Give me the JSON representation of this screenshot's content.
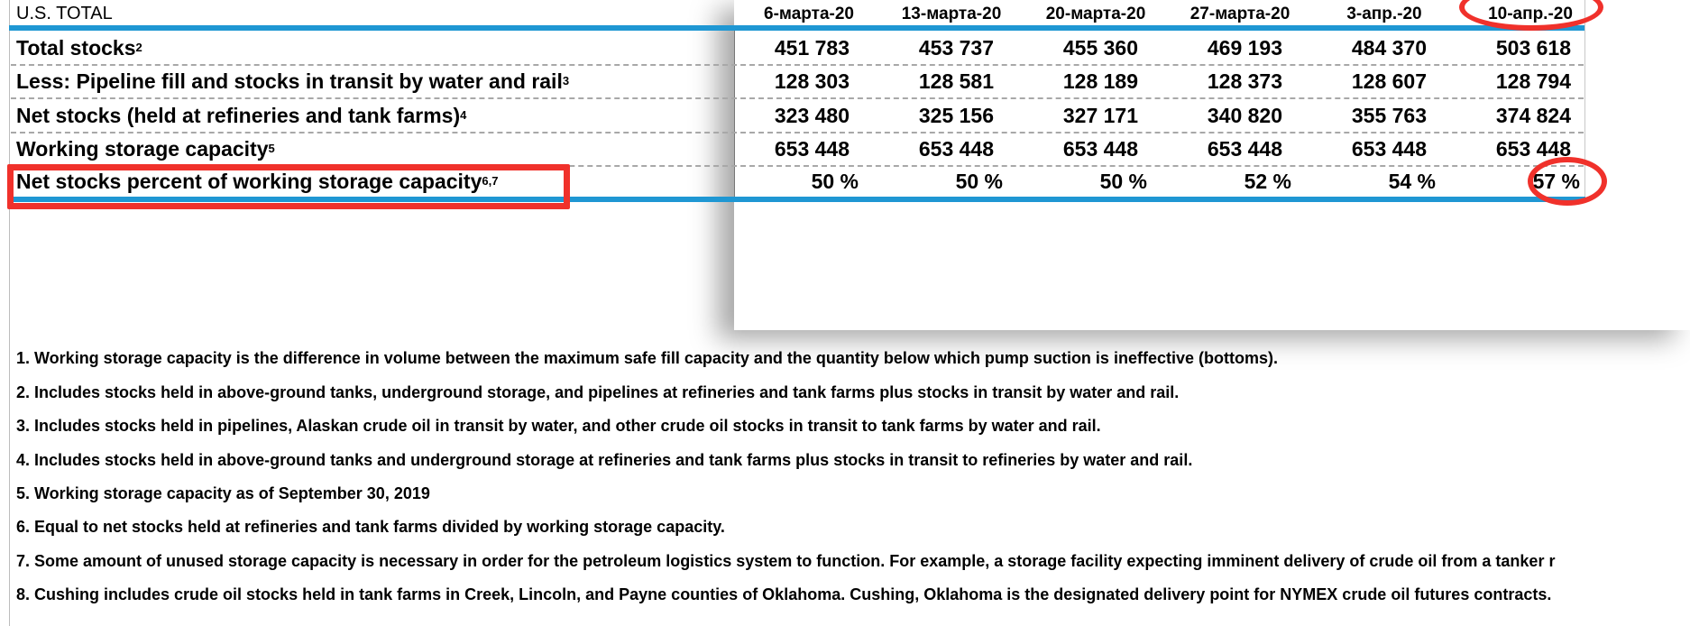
{
  "table": {
    "header_label": "U.S. TOTAL",
    "columns": [
      "6-марта-20",
      "13-марта-20",
      "20-марта-20",
      "27-марта-20",
      "3-апр.-20",
      "10-апр.-20"
    ],
    "rows": [
      {
        "label": "Total stocks",
        "sup": "2",
        "values": [
          "451 783",
          "453 737",
          "455 360",
          "469 193",
          "484 370",
          "503 618"
        ]
      },
      {
        "label": "Less:  Pipeline fill and stocks in transit by water and rail",
        "sup": "3",
        "values": [
          "128 303",
          "128 581",
          "128 189",
          "128 373",
          "128 607",
          "128 794"
        ]
      },
      {
        "label": "Net stocks (held at refineries and tank farms)",
        "sup": "4",
        "values": [
          "323 480",
          "325 156",
          "327 171",
          "340 820",
          "355 763",
          "374 824"
        ]
      },
      {
        "label": "Working storage capacity",
        "sup": "5",
        "values": [
          "653 448",
          "653 448",
          "653 448",
          "653 448",
          "653 448",
          "653 448"
        ]
      },
      {
        "label": "Net stocks percent of working storage capacity",
        "sup": "6,7",
        "values": [
          "50 %",
          "50 %",
          "50 %",
          "52 %",
          "54 %",
          "57 %"
        ]
      }
    ]
  },
  "footnotes": [
    "1.  Working storage capacity is the difference in volume between the maximum safe fill capacity and the quantity below which pump suction is ineffective (bottoms).",
    "2.  Includes stocks held in above-ground tanks, underground storage, and pipelines at refineries and tank farms plus stocks in transit by water and rail.",
    "3.  Includes stocks held in pipelines, Alaskan crude oil in transit by water, and other crude oil stocks in transit to tank farms by water and rail.",
    "4.  Includes stocks held in above-ground tanks and underground storage at refineries and tank farms plus stocks in transit to refineries by water and rail.",
    "5.  Working storage capacity as of September 30, 2019",
    "6.  Equal to net stocks held at refineries and tank farms divided by working storage capacity.",
    "7.  Some amount of unused storage capacity is necessary in order for the petroleum logistics system to function.  For example, a storage facility expecting imminent delivery of crude oil from a tanker r",
    "8.  Cushing includes crude oil stocks held in tank farms in Creek, Lincoln, and Payne counties of Oklahoma.  Cushing, Oklahoma is the designated delivery point for NYMEX crude oil futures contracts."
  ],
  "annotation_color": "#f0312b",
  "accent_color": "#1f97d3"
}
